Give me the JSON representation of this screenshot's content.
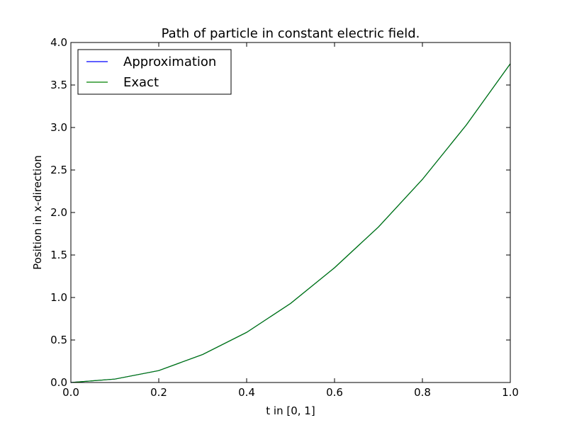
{
  "chart_data": {
    "type": "line",
    "title": "Path of particle in constant electric field.",
    "xlabel": "t in [0, 1]",
    "ylabel": "Position in x-direction",
    "xlim": [
      0.0,
      1.0
    ],
    "ylim": [
      0.0,
      4.0
    ],
    "x_ticks": [
      0.0,
      0.2,
      0.4,
      0.6,
      0.8,
      1.0
    ],
    "x_tick_labels": [
      "0.0",
      "0.2",
      "0.4",
      "0.6",
      "0.8",
      "1.0"
    ],
    "y_ticks": [
      0.0,
      0.5,
      1.0,
      1.5,
      2.0,
      2.5,
      3.0,
      3.5,
      4.0
    ],
    "y_tick_labels": [
      "0.0",
      "0.5",
      "1.0",
      "1.5",
      "2.0",
      "2.5",
      "3.0",
      "3.5",
      "4.0"
    ],
    "grid": false,
    "legend": "top-left",
    "x": [
      0.0,
      0.1,
      0.2,
      0.3,
      0.4,
      0.5,
      0.6,
      0.7,
      0.8,
      0.9,
      1.0
    ],
    "series": [
      {
        "name": "Approximation",
        "color": "#0000ff",
        "values": [
          0.0,
          0.04,
          0.14,
          0.33,
          0.59,
          0.93,
          1.35,
          1.83,
          2.39,
          3.03,
          3.75
        ]
      },
      {
        "name": "Exact",
        "color": "#008000",
        "values": [
          0.0,
          0.04,
          0.14,
          0.33,
          0.59,
          0.93,
          1.35,
          1.83,
          2.39,
          3.03,
          3.75
        ]
      }
    ]
  }
}
